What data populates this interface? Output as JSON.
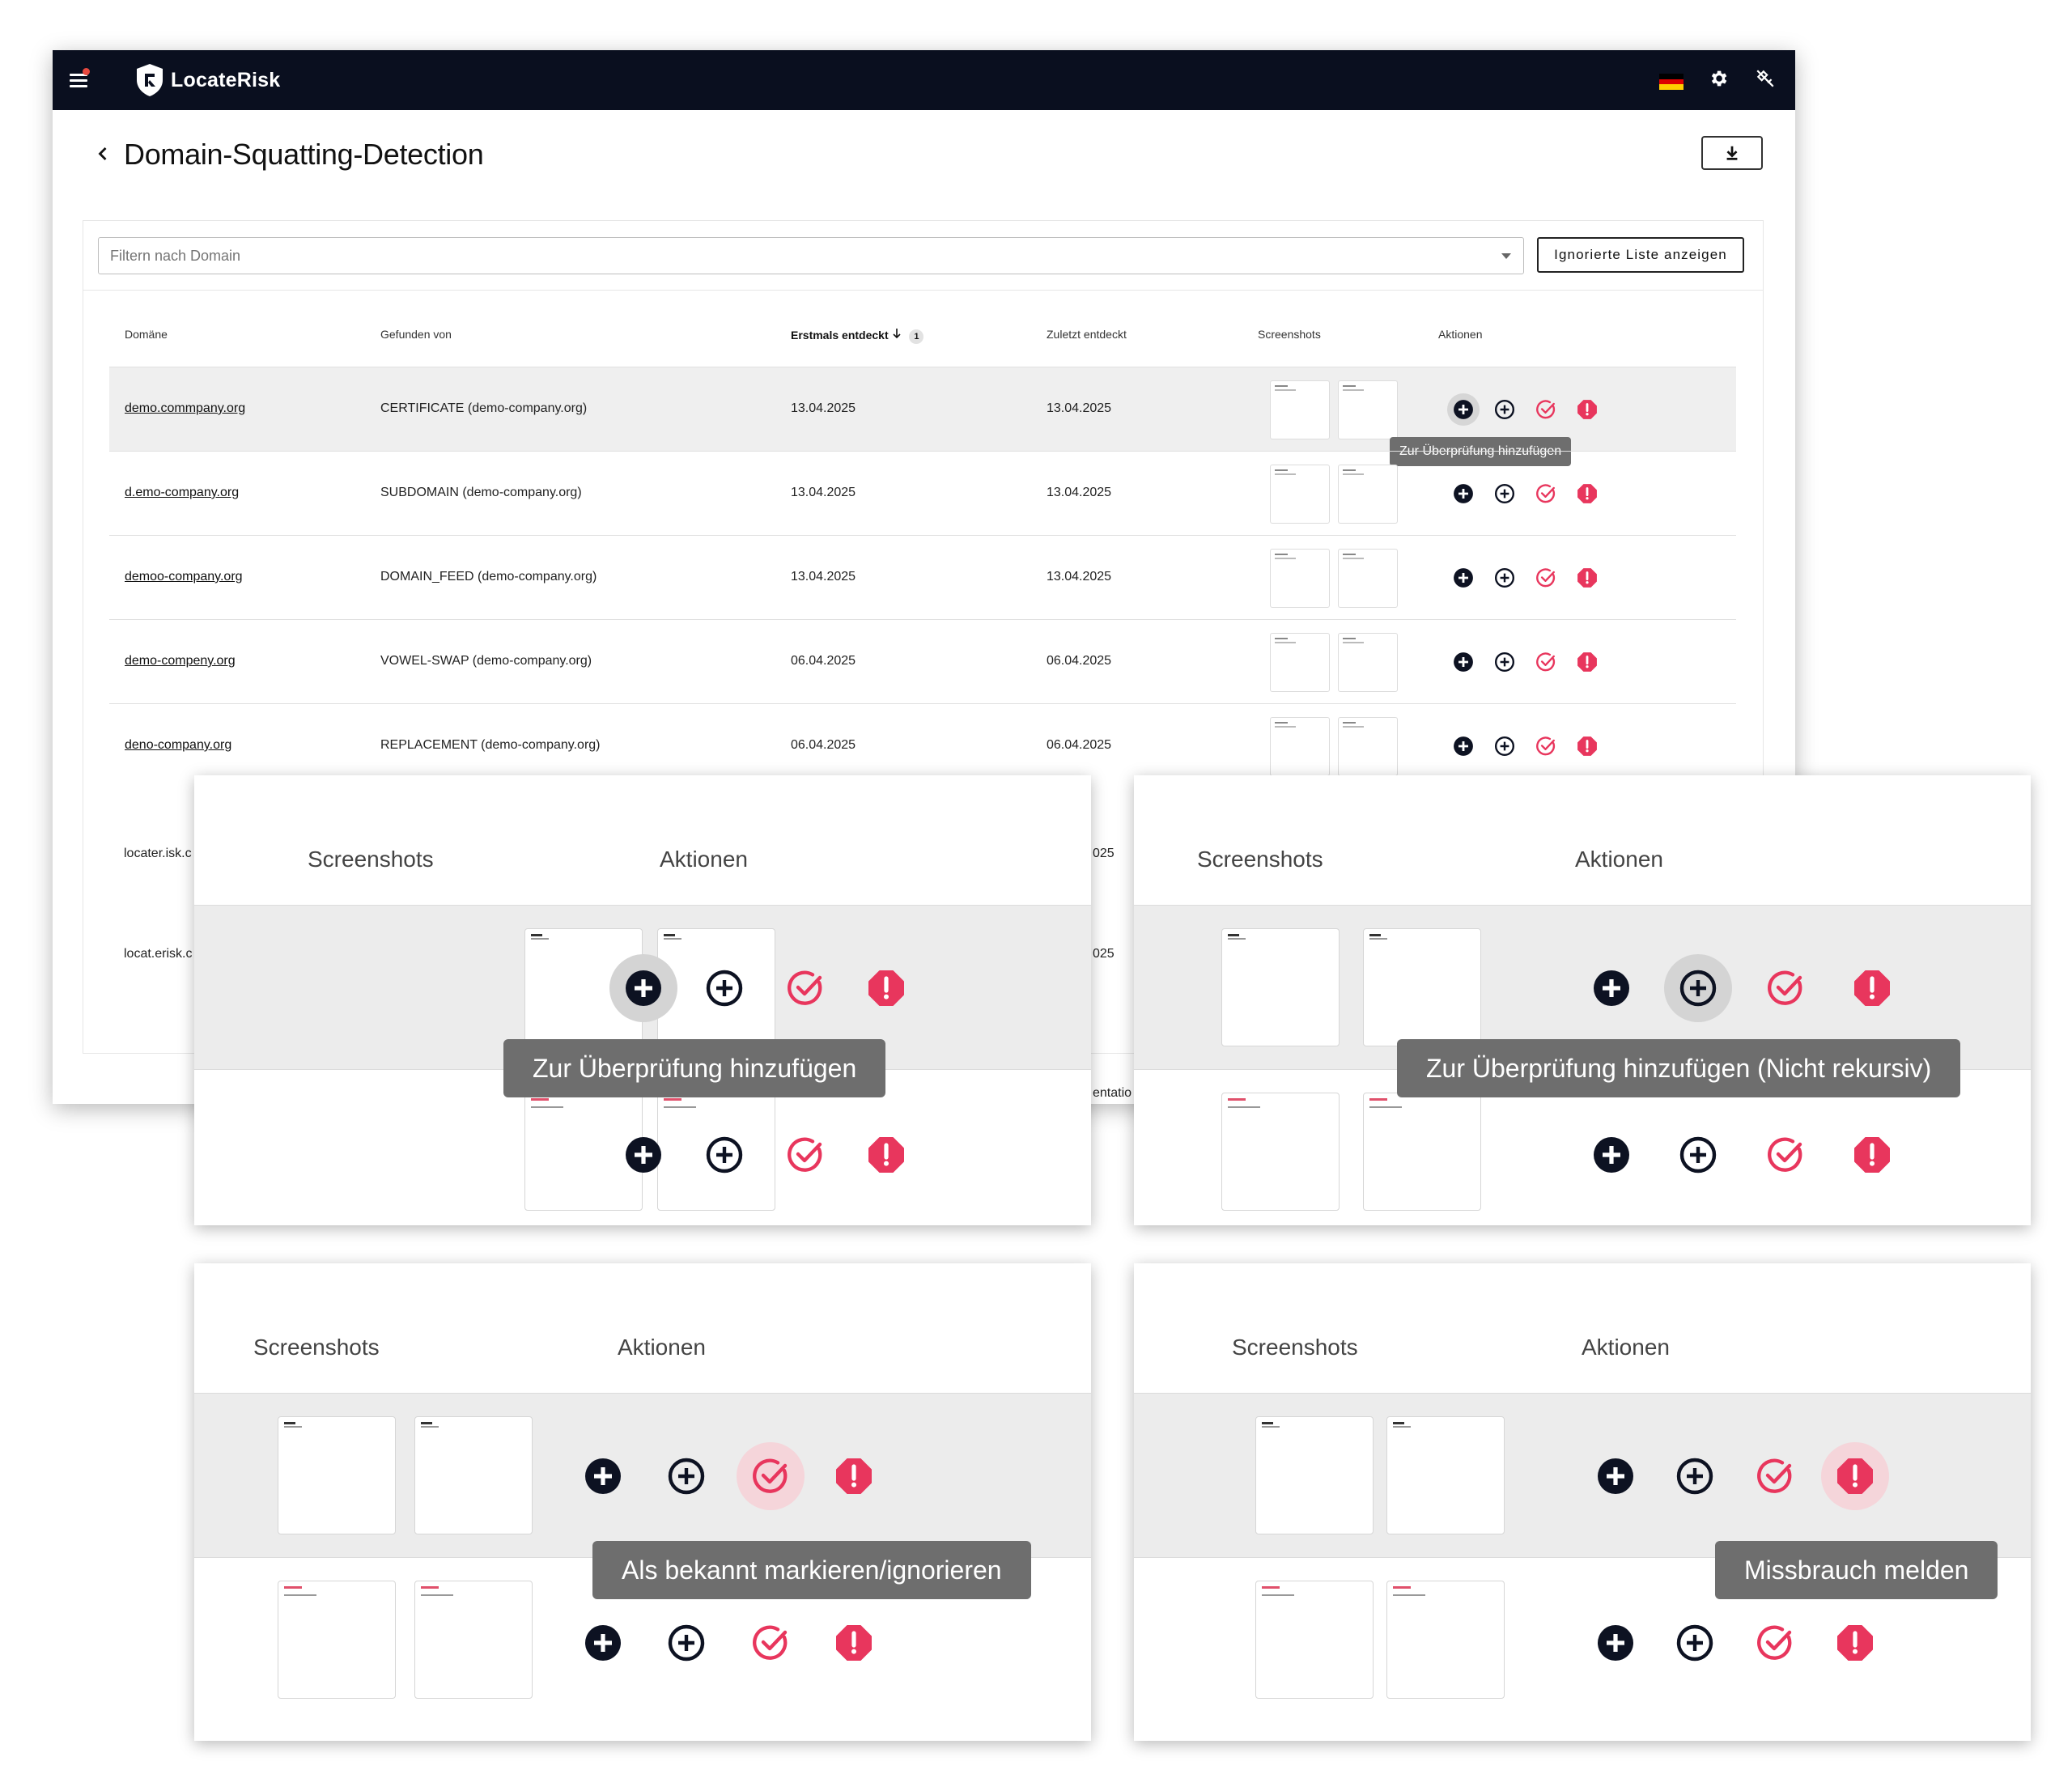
{
  "app": {
    "logo_text": "LocateRisk"
  },
  "header": {
    "title": "Domain-Squatting-Detection",
    "flag_colors": [
      "#000000",
      "#dd0000",
      "#ffce00"
    ]
  },
  "filter": {
    "placeholder": "Filtern nach Domain",
    "ignored_button": "Ignorierte Liste anzeigen"
  },
  "table": {
    "columns": {
      "domain": "Domäne",
      "found_by": "Gefunden von",
      "first_detected": "Erstmals entdeckt",
      "sort_index": "1",
      "last_detected": "Zuletzt entdeckt",
      "screenshots": "Screenshots",
      "actions": "Aktionen"
    },
    "rows": [
      {
        "domain": "demo.commpany.org",
        "found_by": "CERTIFICATE (demo-company.org)",
        "first": "13.04.2025",
        "last": "13.04.2025"
      },
      {
        "domain": "d.emo-company.org",
        "found_by": "SUBDOMAIN (demo-company.org)",
        "first": "13.04.2025",
        "last": "13.04.2025"
      },
      {
        "domain": "demoo-company.org",
        "found_by": "DOMAIN_FEED (demo-company.org)",
        "first": "13.04.2025",
        "last": "13.04.2025"
      },
      {
        "domain": "demo-compeny.org",
        "found_by": "VOWEL-SWAP (demo-company.org)",
        "first": "06.04.2025",
        "last": "06.04.2025"
      },
      {
        "domain": "deno-company.org",
        "found_by": "REPLACEMENT (demo-company.org)",
        "first": "06.04.2025",
        "last": "06.04.2025"
      }
    ],
    "partial_rows": [
      {
        "domain": "locater.isk.c",
        "date_tail": "025"
      },
      {
        "domain": "locat.erisk.c",
        "date_tail": "025"
      }
    ],
    "partial_footer_text": "entatio",
    "tooltip": "Zur Überprüfung hinzufügen"
  },
  "zoom_panels": [
    {
      "screenshots": "Screenshots",
      "actions": "Aktionen",
      "tooltip": "Zur Überprüfung hinzufügen"
    },
    {
      "screenshots": "Screenshots",
      "actions": "Aktionen",
      "tooltip": "Zur Überprüfung hinzufügen (Nicht rekursiv)"
    },
    {
      "screenshots": "Screenshots",
      "actions": "Aktionen",
      "tooltip": "Als bekannt markieren/ignorieren"
    },
    {
      "screenshots": "Screenshots",
      "actions": "Aktionen",
      "tooltip": "Missbrauch melden"
    }
  ],
  "colors": {
    "navbar": "#0a0f1f",
    "accent_pink": "#e8365d",
    "tooltip_bg": "#6e6e6e"
  },
  "icons": [
    "menu-icon",
    "shield-logo-icon",
    "settings-gear-icon",
    "satellite-off-icon",
    "download-icon",
    "chevron-left-icon",
    "add-circle-filled-icon",
    "add-circle-outline-icon",
    "check-circle-icon",
    "alert-octagon-icon"
  ]
}
